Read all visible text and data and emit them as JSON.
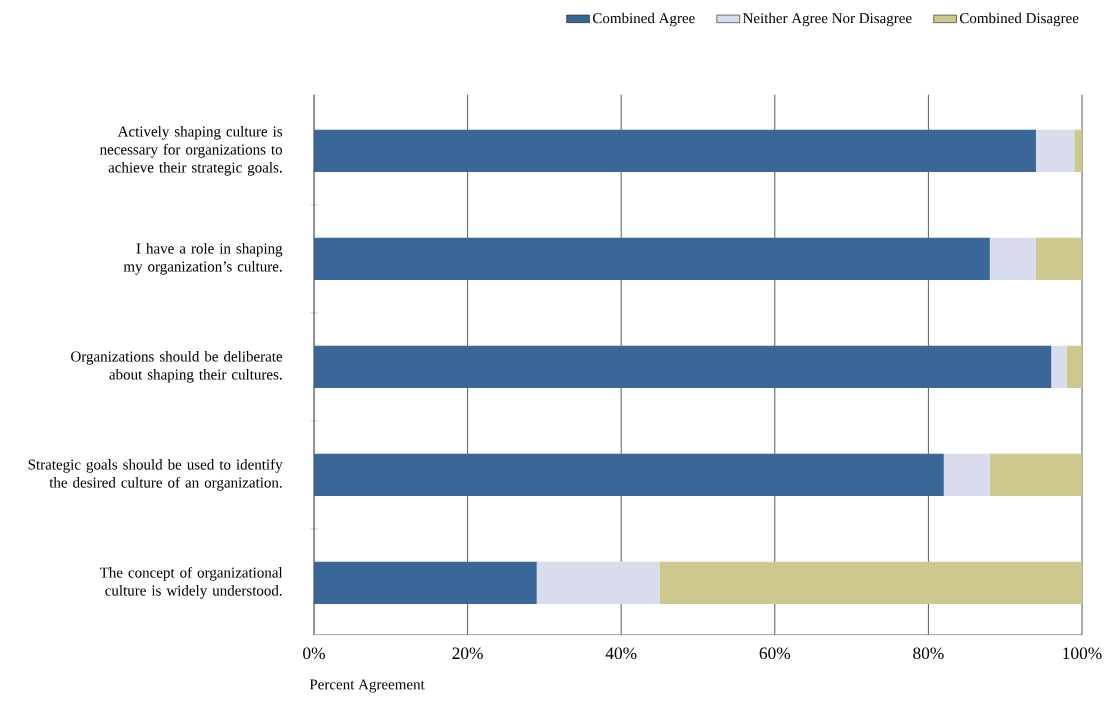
{
  "chart_data": {
    "type": "bar",
    "orientation": "horizontal",
    "stacked": true,
    "xlabel": "Percent Agreement",
    "categories": [
      "Actively shaping culture is necessary for organizations to achieve their strategic goals.",
      "I have a role in shaping my organization’s culture.",
      "Organizations should be deliberate about shaping their cultures.",
      "Strategic goals should be used to identify the desired culture of an organization.",
      "The concept of organizational culture is widely understood."
    ],
    "series": [
      {
        "name": "Combined Agree",
        "color": "#3a6698",
        "values": [
          94,
          88,
          96,
          82,
          29
        ]
      },
      {
        "name": "Neither Agree Nor Disagree",
        "color": "#d8dcec",
        "values": [
          5,
          6,
          2,
          6,
          16
        ]
      },
      {
        "name": "Combined Disagree",
        "color": "#cdc98e",
        "values": [
          1,
          6,
          2,
          12,
          55
        ]
      }
    ],
    "xlim": [
      0,
      100
    ],
    "xticks": [
      {
        "value": 0,
        "label": "0%"
      },
      {
        "value": 20,
        "label": "20%"
      },
      {
        "value": 40,
        "label": "40%"
      },
      {
        "value": 60,
        "label": "60%"
      },
      {
        "value": 80,
        "label": "80%"
      },
      {
        "value": 100,
        "label": "100%"
      }
    ],
    "grid": "x",
    "legend": "top right"
  }
}
